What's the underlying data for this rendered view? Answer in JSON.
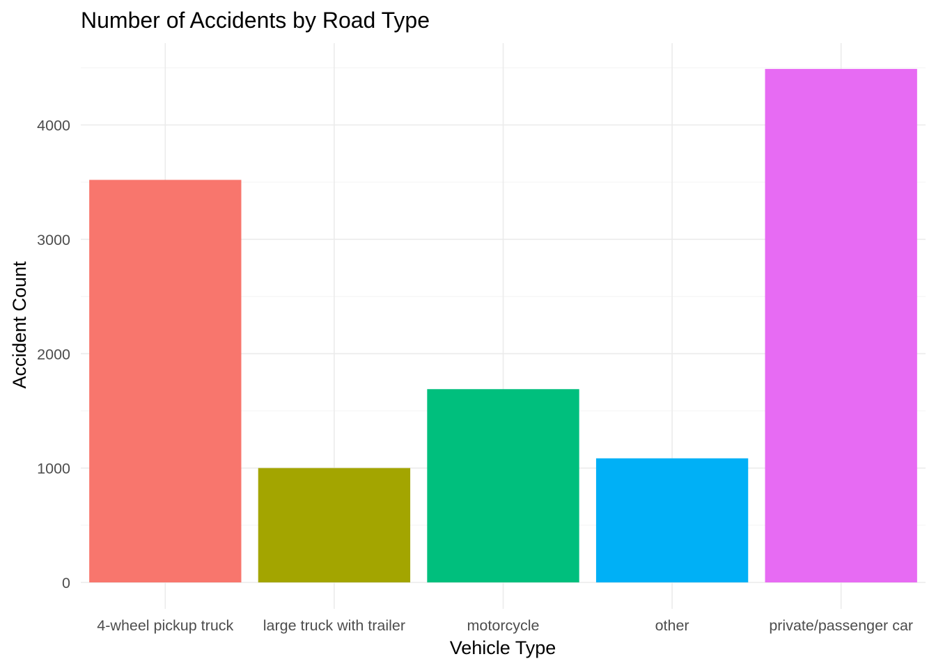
{
  "chart_data": {
    "type": "bar",
    "title": "Number of Accidents by Road Type",
    "xlabel": "Vehicle Type",
    "ylabel": "Accident Count",
    "categories": [
      "4-wheel pickup truck",
      "large truck with trailer",
      "motorcycle",
      "other",
      "private/passenger car"
    ],
    "values": [
      3520,
      1000,
      1690,
      1085,
      4490
    ],
    "colors": [
      "#F8766D",
      "#A3A500",
      "#00BF7D",
      "#00B0F6",
      "#E76BF3"
    ],
    "ylim": [
      0,
      4720
    ],
    "yticks": [
      0,
      1000,
      2000,
      3000,
      4000
    ],
    "ytick_labels": [
      "0",
      "1000",
      "2000",
      "3000",
      "4000"
    ],
    "grid": true,
    "legend": "none",
    "theme": "minimal"
  }
}
